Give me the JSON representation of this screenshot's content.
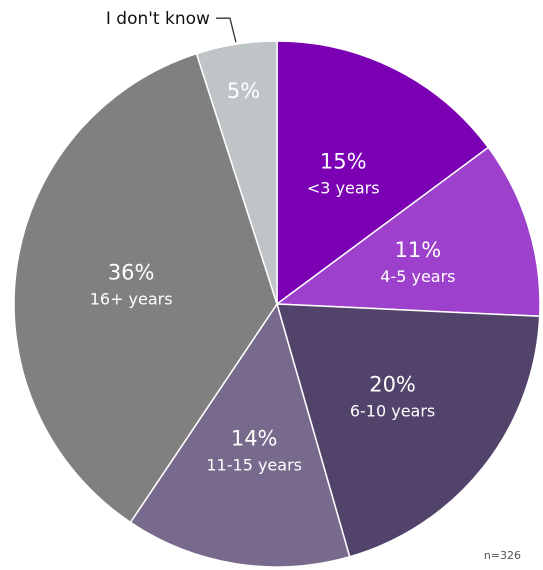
{
  "chart_data": {
    "type": "pie",
    "slices": [
      {
        "label": "<3 years",
        "value": 15,
        "display": "15%",
        "color": "#7b00b4"
      },
      {
        "label": "4-5 years",
        "value": 11,
        "display": "11%",
        "color": "#9d41cc"
      },
      {
        "label": "6-10 years",
        "value": 20,
        "display": "20%",
        "color": "#52436a"
      },
      {
        "label": "11-15 years",
        "value": 14,
        "display": "14%",
        "color": "#786a8c"
      },
      {
        "label": "16+ years",
        "value": 36,
        "display": "36%",
        "color": "#808080"
      },
      {
        "label": "I don't know",
        "value": 5,
        "display": "5%",
        "color": "#bfc4c7"
      }
    ],
    "start": "12 o'clock",
    "direction": "clockwise"
  },
  "note": "n=326"
}
